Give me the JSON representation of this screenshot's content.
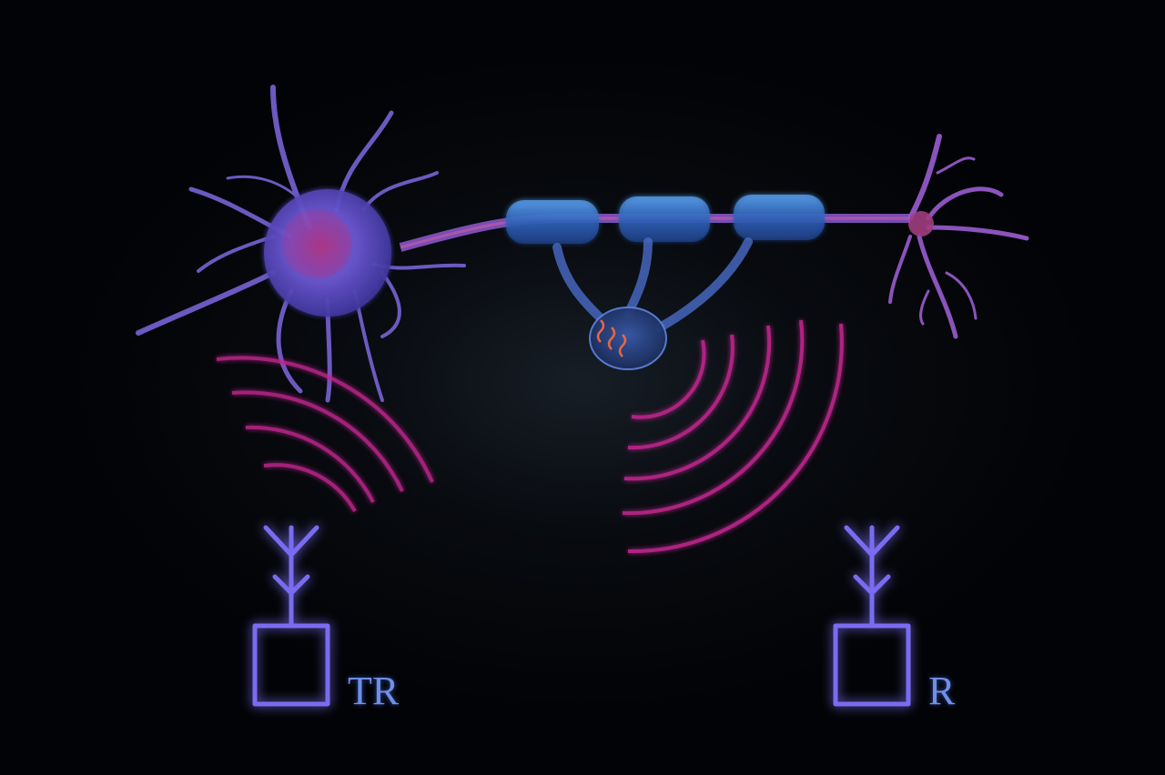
{
  "labels": {
    "transmitter_receiver": "TR",
    "receiver": "R"
  },
  "colors": {
    "background": "#020306",
    "neuron_body": "#6a5fd8",
    "neuron_glow": "#c44a9a",
    "myelin": "#3d7fd6",
    "wave": "#c0268e",
    "antenna": "#7a6cf0",
    "label_text": "#6f8fe6",
    "helix": "#ff6a3a"
  },
  "icons": {
    "left_antenna": "antenna-icon",
    "right_antenna": "antenna-icon",
    "left_box": "transceiver-box-icon",
    "right_box": "receiver-box-icon"
  }
}
